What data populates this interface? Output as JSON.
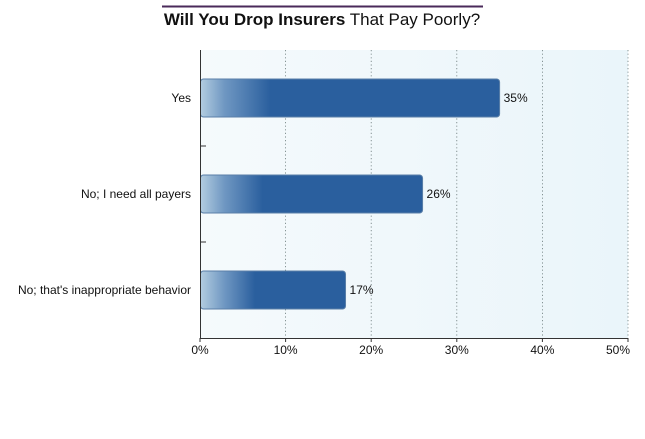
{
  "chart_data": {
    "type": "bar",
    "orientation": "horizontal",
    "title": "Will You Drop Insurers That Pay Poorly?",
    "title_bold_part": "Will You Drop Insurers",
    "title_regular_part": " That Pay Poorly?",
    "categories": [
      "Yes",
      "No; I need all payers",
      "No; that's inappropriate behavior"
    ],
    "values": [
      35,
      26,
      17
    ],
    "value_labels": [
      "35%",
      "26%",
      "17%"
    ],
    "xlim": [
      0,
      50
    ],
    "xticks": [
      0,
      10,
      20,
      30,
      40,
      50
    ],
    "xtick_labels": [
      "0%",
      "10%",
      "20%",
      "30%",
      "40%",
      "50%"
    ],
    "xlabel": "",
    "ylabel": "",
    "grid": "vertical dotted",
    "legend": "none"
  },
  "colors": {
    "title_rule": "#4a2a5a",
    "plot_background": "#eef7fb",
    "bar_dark": "#2a5f9e",
    "bar_light": "#b3cde0",
    "bar_border": "#5a7fa8",
    "grid": "#6b7b7b",
    "axis": "#333333"
  }
}
